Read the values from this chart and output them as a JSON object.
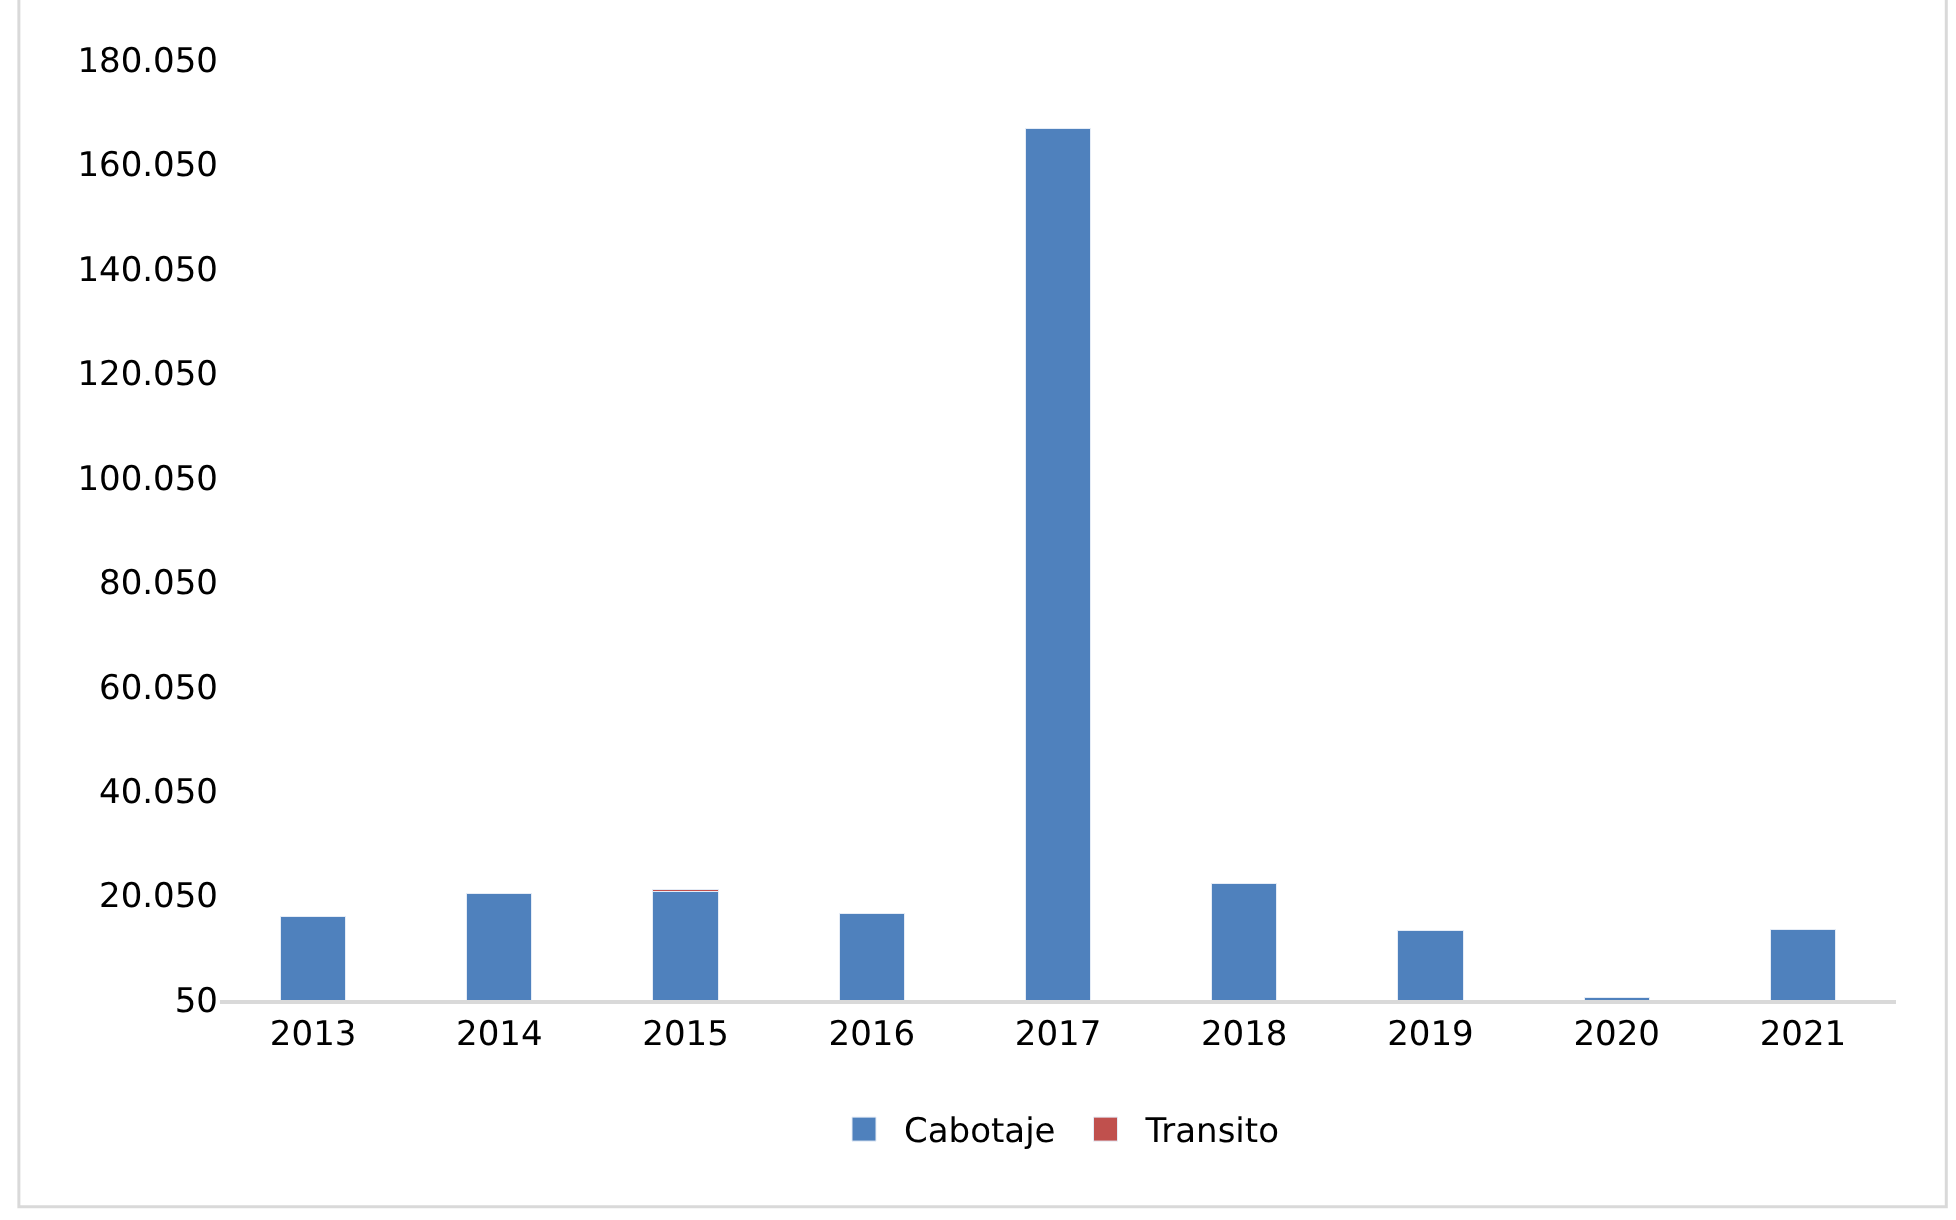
{
  "chart_data": {
    "type": "bar",
    "stacked": true,
    "categories": [
      "2013",
      "2014",
      "2015",
      "2016",
      "2017",
      "2018",
      "2019",
      "2020",
      "2021"
    ],
    "series": [
      {
        "name": "Cabotaje",
        "color": "#4f81bd",
        "values": [
          16000,
          20500,
          20900,
          16700,
          167000,
          22300,
          13400,
          500,
          13600
        ]
      },
      {
        "name": "Transito",
        "color": "#c0504d",
        "values": [
          null,
          null,
          400,
          null,
          null,
          null,
          null,
          null,
          null
        ]
      }
    ],
    "ylim": [
      50,
      180050
    ],
    "yticks": [
      {
        "value": 50,
        "label": "50"
      },
      {
        "value": 20050,
        "label": "20.050"
      },
      {
        "value": 40050,
        "label": "40.050"
      },
      {
        "value": 60050,
        "label": "60.050"
      },
      {
        "value": 80050,
        "label": "80.050"
      },
      {
        "value": 100050,
        "label": "100.050"
      },
      {
        "value": 120050,
        "label": "120.050"
      },
      {
        "value": 140050,
        "label": "140.050"
      },
      {
        "value": 160050,
        "label": "160.050"
      },
      {
        "value": 180050,
        "label": "180.050"
      }
    ],
    "grid": false,
    "legend": "bottom"
  }
}
